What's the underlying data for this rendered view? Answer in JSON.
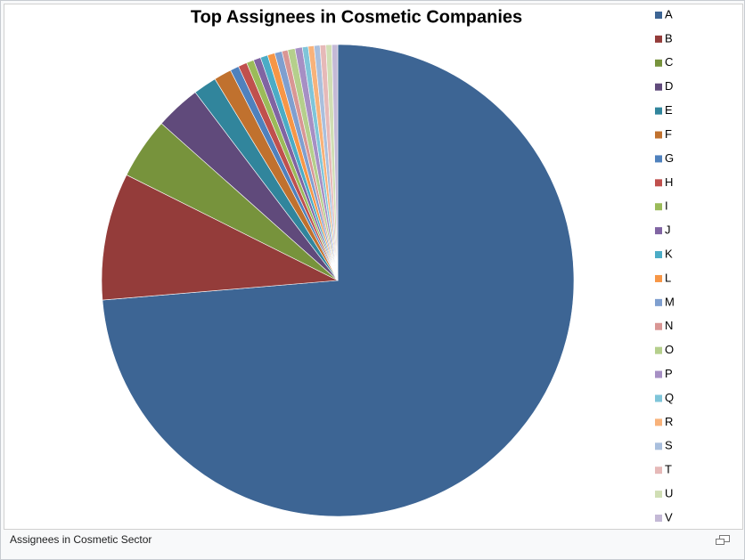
{
  "chart_data": {
    "type": "pie",
    "title": "Top Assignees in Cosmetic Companies",
    "categories": [
      "A",
      "B",
      "C",
      "D",
      "E",
      "F",
      "G",
      "H",
      "I",
      "J",
      "K",
      "L",
      "M",
      "N",
      "O",
      "P",
      "Q",
      "R",
      "S",
      "T",
      "U",
      "V"
    ],
    "values": [
      73.6,
      8.7,
      4.2,
      3.1,
      1.6,
      1.2,
      0.6,
      0.6,
      0.5,
      0.5,
      0.5,
      0.5,
      0.5,
      0.4,
      0.5,
      0.5,
      0.4,
      0.4,
      0.4,
      0.4,
      0.4,
      0.4
    ],
    "colors": [
      "#3d6594",
      "#943c3a",
      "#77933c",
      "#604a7b",
      "#31859c",
      "#c0712e",
      "#4f81bd",
      "#c0504d",
      "#9bbb59",
      "#8064a2",
      "#4bacc6",
      "#f79646",
      "#7f9fcf",
      "#d99694",
      "#b5cf8c",
      "#a68fc4",
      "#7fc5d9",
      "#f8b27a",
      "#a9bfdd",
      "#e6b9b8",
      "#d0deb4",
      "#c4b9d6"
    ],
    "legend": "right"
  },
  "caption": "Assignees in Cosmetic Sector"
}
